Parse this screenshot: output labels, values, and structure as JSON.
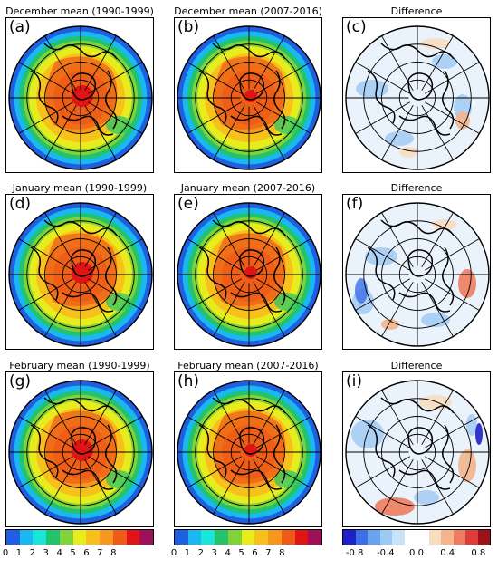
{
  "panels": [
    {
      "letter": "(a)",
      "title": "December mean (1990-1999)",
      "kind": "mean",
      "variant": 0
    },
    {
      "letter": "(b)",
      "title": "December mean (2007-2016)",
      "kind": "mean",
      "variant": 1
    },
    {
      "letter": "(c)",
      "title": "Difference",
      "kind": "diff",
      "variant": 0
    },
    {
      "letter": "(d)",
      "title": "January mean (1990-1999)",
      "kind": "mean",
      "variant": 2
    },
    {
      "letter": "(e)",
      "title": "January mean (2007-2016)",
      "kind": "mean",
      "variant": 3
    },
    {
      "letter": "(f)",
      "title": "Difference",
      "kind": "diff",
      "variant": 1
    },
    {
      "letter": "(g)",
      "title": "February mean (1990-1999)",
      "kind": "mean",
      "variant": 4
    },
    {
      "letter": "(h)",
      "title": "February mean (2007-2016)",
      "kind": "mean",
      "variant": 5
    },
    {
      "letter": "(i)",
      "title": "Difference",
      "kind": "diff",
      "variant": 2
    }
  ],
  "colorbars": {
    "mean": {
      "colors": [
        "#1f5fe0",
        "#19b8f0",
        "#19e6d8",
        "#22c36a",
        "#7fd23a",
        "#e8ec1c",
        "#f8c01a",
        "#f7961c",
        "#ef5a16",
        "#e01414",
        "#a0105a"
      ],
      "ticks": [
        "0",
        "1",
        "2",
        "3",
        "4",
        "5",
        "6",
        "7",
        "8"
      ]
    },
    "diff": {
      "colors": [
        "#2020c8",
        "#3c6ee6",
        "#6aa2f0",
        "#9cc8f4",
        "#c8e2f8",
        "#ffffff",
        "#ffffff",
        "#f8dcc0",
        "#f4b48c",
        "#ee7c5e",
        "#dc3c3c",
        "#a01018"
      ],
      "ticks": [
        "-0.8",
        "-0.4",
        "0.0",
        "0.4",
        "0.8"
      ]
    }
  }
}
